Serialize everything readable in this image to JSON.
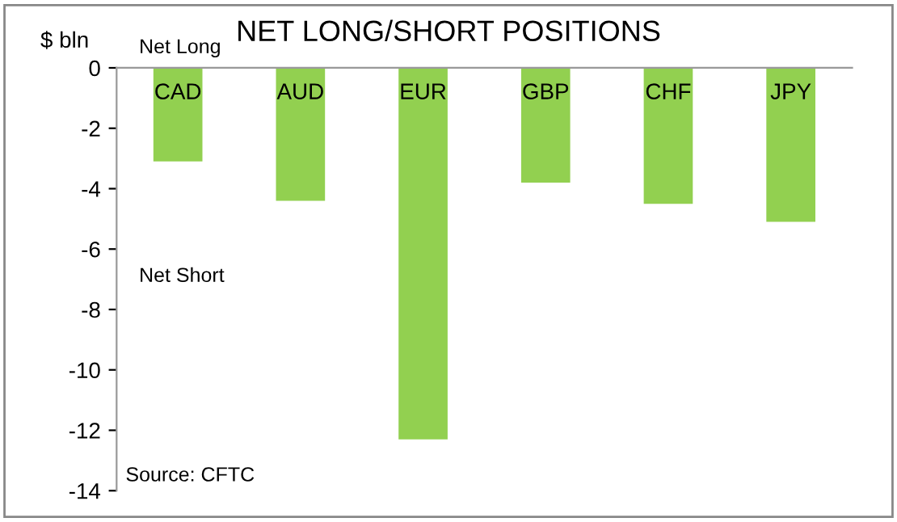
{
  "chart_data": {
    "type": "bar",
    "title": "NET LONG/SHORT POSITIONS",
    "ylabel": "$ bln",
    "categories": [
      "CAD",
      "AUD",
      "EUR",
      "GBP",
      "CHF",
      "JPY"
    ],
    "values": [
      -3.1,
      -4.4,
      -12.3,
      -3.8,
      -4.5,
      -5.1
    ],
    "color": "#92d050",
    "ylim": [
      -14,
      0
    ],
    "yticks": [
      -14,
      -12,
      -10,
      -8,
      -6,
      -4,
      -2,
      0
    ],
    "grid": false,
    "annotations": [
      "Net Long",
      "Net Short",
      "Source: CFTC"
    ]
  }
}
